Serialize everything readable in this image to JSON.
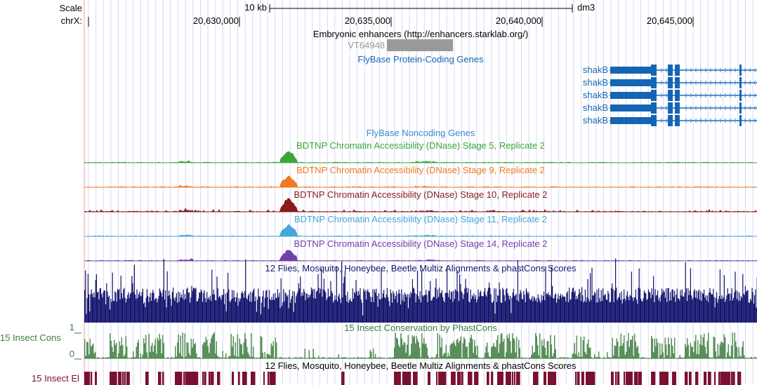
{
  "ruler": {
    "scale_label": "Scale",
    "chrom_label": "chrX:",
    "scale_bar_label": "10 kb",
    "assembly": "dm3",
    "ticks": [
      "20,630,000",
      "20,635,000",
      "20,640,000",
      "20,645,000"
    ]
  },
  "tracks": {
    "enhancers": {
      "title": "Embryonic enhancers (http://enhancers.starklab.org/)",
      "item": "VT64948",
      "color": "#999999"
    },
    "protein_genes": {
      "title": "FlyBase Protein-Coding Genes",
      "color": "#1565b5",
      "genes": [
        "shakB",
        "shakB",
        "shakB",
        "shakB",
        "shakB"
      ]
    },
    "noncoding_genes": {
      "title": "FlyBase Noncoding Genes",
      "color": "#3a8ad0"
    },
    "dnase": [
      {
        "title": "BDTNP Chromatin Accessibility (DNase) Stage 5, Replicate 2",
        "color": "#3aa63a"
      },
      {
        "title": "BDTNP Chromatin Accessibility (DNase) Stage 9, Replicate 2",
        "color": "#f07a20"
      },
      {
        "title": "BDTNP Chromatin Accessibility (DNase) Stage 10, Replicate 2",
        "color": "#8b1a1a"
      },
      {
        "title": "BDTNP Chromatin Accessibility (DNase) Stage 11, Replicate 2",
        "color": "#45a8d8"
      },
      {
        "title": "BDTNP Chromatin Accessibility (DNase) Stage 14, Replicate 2",
        "color": "#7040a8"
      }
    ],
    "multiz": {
      "title": "12 Flies, Mosquito, Honeybee, Beetle Multiz Alignments & phastCons Scores",
      "color": "#14146e"
    },
    "phastcons": {
      "title": "15 Insect Conservation by PhastCons",
      "side_label": "15 Insect Cons",
      "y_max": "1",
      "y_min": "0",
      "color": "#3d7d3d"
    },
    "elements": {
      "title": "12 Flies, Mosquito, Honeybee, Beetle Multiz Alignments & phastCons Scores",
      "side_label": "15 Insect El",
      "color": "#7a1030"
    }
  }
}
